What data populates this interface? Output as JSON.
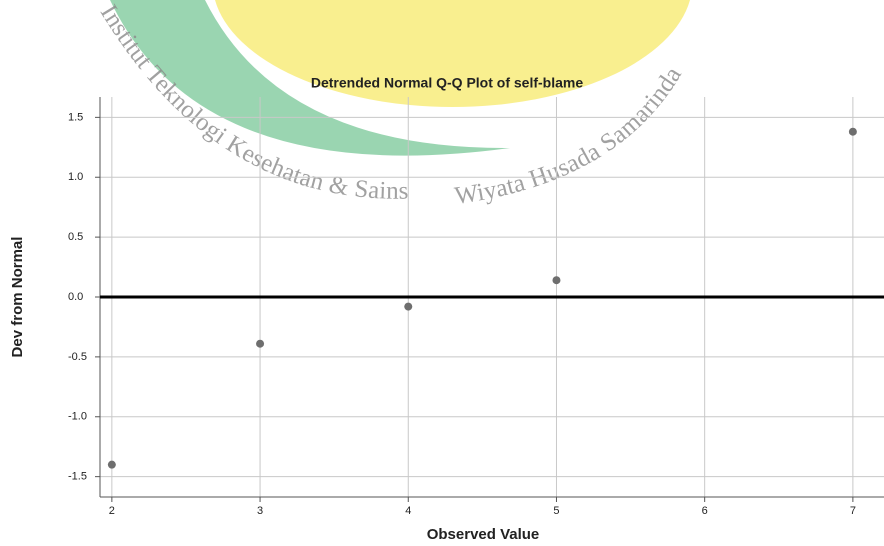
{
  "chart_data": {
    "type": "scatter",
    "title": "Detrended Normal Q-Q Plot of self-blame",
    "x_label": "Observed Value",
    "y_label": "Dev from Normal",
    "watermark": [
      "Institut Teknologi Kesehatan & Sains",
      "Wiyata Husada Samarinda"
    ],
    "x": [
      2,
      3,
      4,
      5,
      7
    ],
    "values": [
      -1.4,
      -0.39,
      -0.08,
      0.14,
      1.38
    ],
    "color": "#6e6e6e",
    "reference_line": 0,
    "xlim": [
      1.92,
      7.21
    ],
    "ylim": [
      -1.67,
      1.67
    ],
    "xticks": [
      2,
      3,
      4,
      5,
      6,
      7
    ],
    "yticks": [
      1.5,
      {
        "value": 1.0,
        "label": "1.0"
      },
      0.5,
      {
        "value": 0,
        "label": "0.0"
      },
      -0.5,
      {
        "value": -1.0,
        "label": "-1.0"
      },
      -1.5
    ],
    "grid": true
  }
}
